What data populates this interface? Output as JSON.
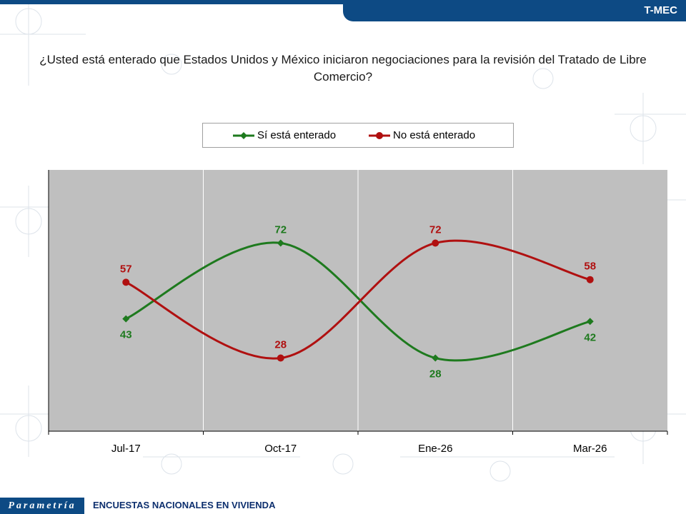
{
  "header": {
    "badge": "T-MEC"
  },
  "footer": {
    "logo": "Parametría",
    "text": "ENCUESTAS NACIONALES EN VIVIENDA"
  },
  "chart_data": {
    "type": "line",
    "title": "¿Usted está enterado que Estados Unidos y México iniciaron negociaciones para la revisión del Tratado de Libre Comercio?",
    "categories": [
      "Jul-17",
      "Oct-17",
      "Ene-26",
      "Mar-26"
    ],
    "ylim": [
      0,
      100
    ],
    "grid": "vertical",
    "smooth": true,
    "legend_position": "top",
    "plot_background": "#bfbfbf",
    "series": [
      {
        "name": "Sí está enterado",
        "values": [
          43,
          72,
          28,
          42
        ],
        "color": "#1e7a1e",
        "marker": "diamond",
        "label_position": [
          "below",
          "above",
          "below",
          "below"
        ]
      },
      {
        "name": "No está enterado",
        "values": [
          57,
          28,
          72,
          58
        ],
        "color": "#b01010",
        "marker": "circle",
        "label_position": [
          "above",
          "above",
          "above",
          "above"
        ]
      }
    ]
  }
}
